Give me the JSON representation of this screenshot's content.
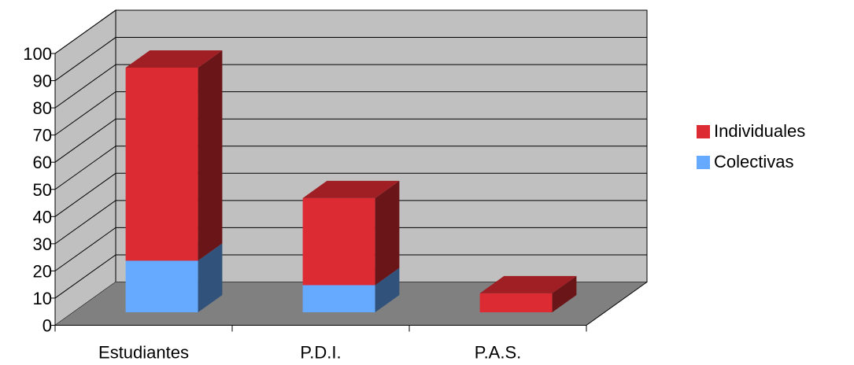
{
  "chart_data": {
    "type": "bar",
    "stacked": true,
    "three_d": true,
    "categories": [
      "Estudiantes",
      "P.D.I.",
      "P.A.S."
    ],
    "series": [
      {
        "name": "Colectivas",
        "values": [
          19,
          10,
          0
        ],
        "color": "#66aaff"
      },
      {
        "name": "Individuales",
        "values": [
          71,
          32,
          7
        ],
        "color": "#dd2b33"
      }
    ],
    "ylim": [
      0,
      100
    ],
    "yticks": [
      "0",
      "10",
      "20",
      "30",
      "40",
      "50",
      "60",
      "70",
      "80",
      "90",
      "100"
    ],
    "grid": true,
    "legend_position": "right",
    "colors": {
      "back_wall": "#c0c0c0",
      "side_wall": "#c0c0c0",
      "floor": "#808080",
      "gridline": "#000000"
    }
  }
}
